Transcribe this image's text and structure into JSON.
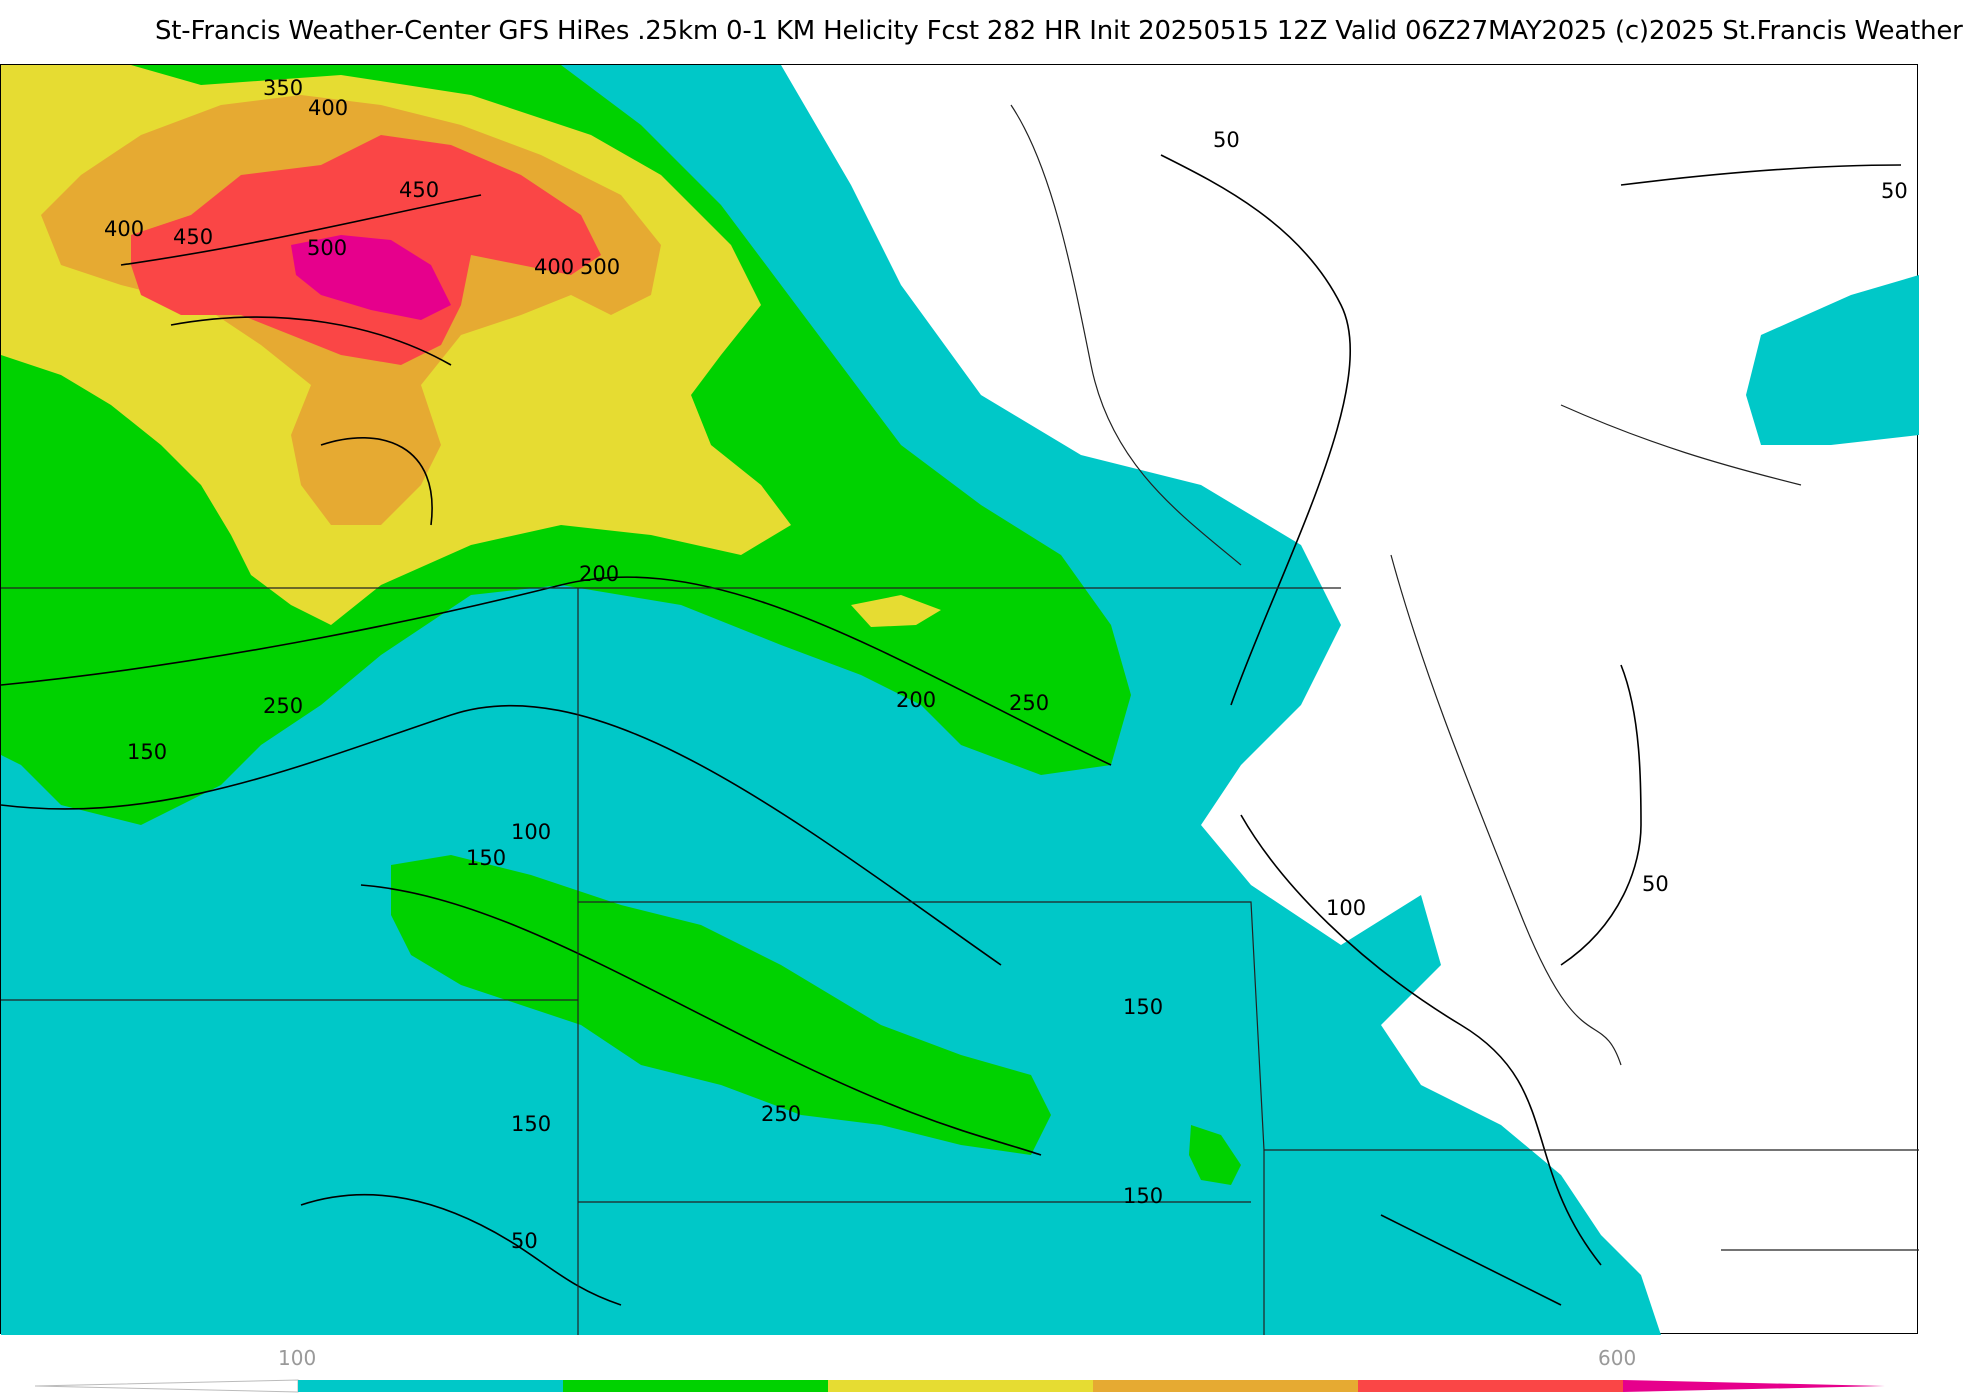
{
  "header": {
    "title": "St-Francis Weather-Center GFS HiRes .25km 0-1 KM Helicity Fcst 282 HR Init 20250515 12Z  Valid 06Z27MAY2025    (c)2025 St.Francis Weather"
  },
  "colors": {
    "band_100_150": "#00c8c8",
    "band_150_250": "#00d200",
    "band_250_350": "#e6dc32",
    "band_350_450": "#e6aa32",
    "band_450_550": "#fa4646",
    "band_550_600": "#e6008c",
    "contour": "#000000",
    "border": "#aaaaaa",
    "below_100": "#ffffff"
  },
  "map": {
    "contour_labels": [
      {
        "id": "l350",
        "text": "350"
      },
      {
        "id": "l400a",
        "text": "400"
      },
      {
        "id": "l400b",
        "text": "400"
      },
      {
        "id": "l450a",
        "text": "450"
      },
      {
        "id": "l450b",
        "text": "450"
      },
      {
        "id": "l500a",
        "text": "500"
      },
      {
        "id": "l400c",
        "text": "400"
      },
      {
        "id": "l500b",
        "text": "500"
      },
      {
        "id": "l50a",
        "text": "50"
      },
      {
        "id": "l50b",
        "text": "50"
      },
      {
        "id": "l200a",
        "text": "200"
      },
      {
        "id": "l250a",
        "text": "250"
      },
      {
        "id": "l150a",
        "text": "150"
      },
      {
        "id": "l200b",
        "text": "200"
      },
      {
        "id": "l250b",
        "text": "250"
      },
      {
        "id": "l100a",
        "text": "100"
      },
      {
        "id": "l150b",
        "text": "150"
      },
      {
        "id": "l100b",
        "text": "100"
      },
      {
        "id": "l50c",
        "text": "50"
      },
      {
        "id": "l150c",
        "text": "150"
      },
      {
        "id": "l150d",
        "text": "150"
      },
      {
        "id": "l250c",
        "text": "250"
      },
      {
        "id": "l150e",
        "text": "150"
      },
      {
        "id": "l50d",
        "text": "50"
      }
    ]
  },
  "legend": {
    "tick_min": "100",
    "tick_max": "600"
  }
}
